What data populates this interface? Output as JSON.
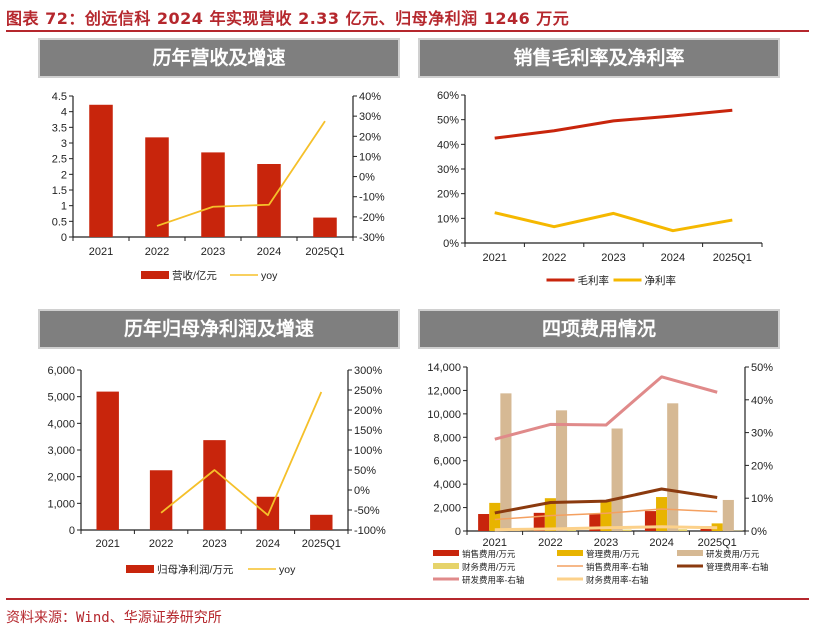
{
  "figure": {
    "title": "图表 72：创远信科 2024 年实现营收 2.33 亿元、归母净利润 1246 万元",
    "source": "资料来源：Wind、华源证券研究所",
    "colors": {
      "title_red": "#b5272d",
      "header_gray": "#7f7f7f"
    }
  },
  "panels": [
    {
      "header": "历年营收及增速"
    },
    {
      "header": "销售毛利率及净利率"
    },
    {
      "header": "历年归母净利润及增速"
    },
    {
      "header": "四项费用情况"
    }
  ],
  "chart_data": [
    {
      "type": "bar+line",
      "title": "历年营收及增速",
      "categories": [
        "2021",
        "2022",
        "2023",
        "2024",
        "2025Q1"
      ],
      "series": [
        {
          "name": "营收/亿元",
          "type": "bar",
          "axis": "left",
          "color": "#c8250c",
          "values": [
            4.22,
            3.18,
            2.7,
            2.33,
            0.62
          ]
        },
        {
          "name": "yoy",
          "type": "line",
          "axis": "right",
          "color": "#f5c02a",
          "values": [
            null,
            -0.245,
            -0.15,
            -0.14,
            0.275
          ]
        }
      ],
      "left_axis": {
        "min": 0,
        "max": 4.5,
        "ticks": [
          "0",
          "0.5",
          "1",
          "1.5",
          "2",
          "2.5",
          "3",
          "3.5",
          "4",
          "4.5"
        ]
      },
      "right_axis": {
        "min": -0.3,
        "max": 0.4,
        "ticks": [
          "-30%",
          "-20%",
          "-10%",
          "0%",
          "10%",
          "20%",
          "30%",
          "40%"
        ]
      },
      "legend": [
        "营收/亿元",
        "yoy"
      ],
      "legend_position": "bottom"
    },
    {
      "type": "line",
      "title": "销售毛利率及净利率",
      "categories": [
        "2021",
        "2022",
        "2023",
        "2024",
        "2025Q1"
      ],
      "series": [
        {
          "name": "毛利率",
          "color": "#c8250c",
          "values": [
            0.425,
            0.455,
            0.495,
            0.515,
            0.538
          ]
        },
        {
          "name": "净利率",
          "color": "#f5b800",
          "values": [
            0.123,
            0.066,
            0.12,
            0.05,
            0.093
          ]
        }
      ],
      "left_axis": {
        "min": 0,
        "max": 0.6,
        "ticks": [
          "0%",
          "10%",
          "20%",
          "30%",
          "40%",
          "50%",
          "60%"
        ]
      },
      "legend": [
        "毛利率",
        "净利率"
      ],
      "legend_position": "bottom"
    },
    {
      "type": "bar+line",
      "title": "历年归母净利润及增速",
      "categories": [
        "2021",
        "2022",
        "2023",
        "2024",
        "2025Q1"
      ],
      "series": [
        {
          "name": "归母净利润/万元",
          "type": "bar",
          "axis": "left",
          "color": "#c8250c",
          "values": [
            5190,
            2240,
            3370,
            1246,
            570
          ]
        },
        {
          "name": "yoy",
          "type": "line",
          "axis": "right",
          "color": "#f5c02a",
          "values": [
            null,
            -0.57,
            0.5,
            -0.63,
            2.45
          ]
        }
      ],
      "left_axis": {
        "min": 0,
        "max": 6000,
        "ticks": [
          "0",
          "1,000",
          "2,000",
          "3,000",
          "4,000",
          "5,000",
          "6,000"
        ]
      },
      "right_axis": {
        "min": -1.0,
        "max": 3.0,
        "ticks": [
          "-100%",
          "-50%",
          "0%",
          "50%",
          "100%",
          "150%",
          "200%",
          "250%",
          "300%"
        ]
      },
      "legend": [
        "归母净利润/万元",
        "yoy"
      ],
      "legend_position": "bottom"
    },
    {
      "type": "bar+line",
      "title": "四项费用情况",
      "categories": [
        "2021",
        "2022",
        "2023",
        "2024",
        "2025Q1"
      ],
      "series": [
        {
          "name": "销售费用/万元",
          "type": "bar",
          "axis": "left",
          "color": "#c8250c",
          "values": [
            1450,
            1550,
            1450,
            1700,
            400
          ]
        },
        {
          "name": "管理费用/万元",
          "type": "bar",
          "axis": "left",
          "color": "#e8b400",
          "values": [
            2400,
            2800,
            2500,
            2900,
            650
          ]
        },
        {
          "name": "研发费用/万元",
          "type": "bar",
          "axis": "left",
          "color": "#d6b994",
          "values": [
            11750,
            10300,
            8750,
            10900,
            2650
          ]
        },
        {
          "name": "财务费用/万元",
          "type": "bar",
          "axis": "left",
          "color": "#e6d36a",
          "values": [
            60,
            80,
            120,
            150,
            30
          ]
        },
        {
          "name": "销售费用率-右轴",
          "type": "line",
          "axis": "right",
          "color": "#f4a060",
          "width": 1.5,
          "values": [
            0.035,
            0.047,
            0.054,
            0.067,
            0.059
          ]
        },
        {
          "name": "管理费用率-右轴",
          "type": "line",
          "axis": "right",
          "color": "#8b3a0e",
          "width": 3,
          "values": [
            0.055,
            0.087,
            0.091,
            0.128,
            0.102
          ]
        },
        {
          "name": "研发费用率-右轴",
          "type": "line",
          "axis": "right",
          "color": "#e08a8a",
          "width": 3,
          "values": [
            0.28,
            0.325,
            0.323,
            0.47,
            0.423
          ]
        },
        {
          "name": "财务费用率-右轴",
          "type": "line",
          "axis": "right",
          "color": "#fcd18a",
          "width": 3,
          "values": [
            0.004,
            0.006,
            0.01,
            0.013,
            0.01
          ]
        }
      ],
      "left_axis": {
        "min": 0,
        "max": 14000,
        "ticks": [
          "0",
          "2,000",
          "4,000",
          "6,000",
          "8,000",
          "10,000",
          "12,000",
          "14,000"
        ]
      },
      "right_axis": {
        "min": 0,
        "max": 0.5,
        "ticks": [
          "0%",
          "10%",
          "20%",
          "30%",
          "40%",
          "50%"
        ]
      },
      "legend": [
        "销售费用/万元",
        "管理费用/万元",
        "研发费用/万元",
        "财务费用/万元",
        "销售费用率-右轴",
        "管理费用率-右轴",
        "研发费用率-右轴",
        "财务费用率-右轴"
      ],
      "legend_position": "bottom"
    }
  ]
}
